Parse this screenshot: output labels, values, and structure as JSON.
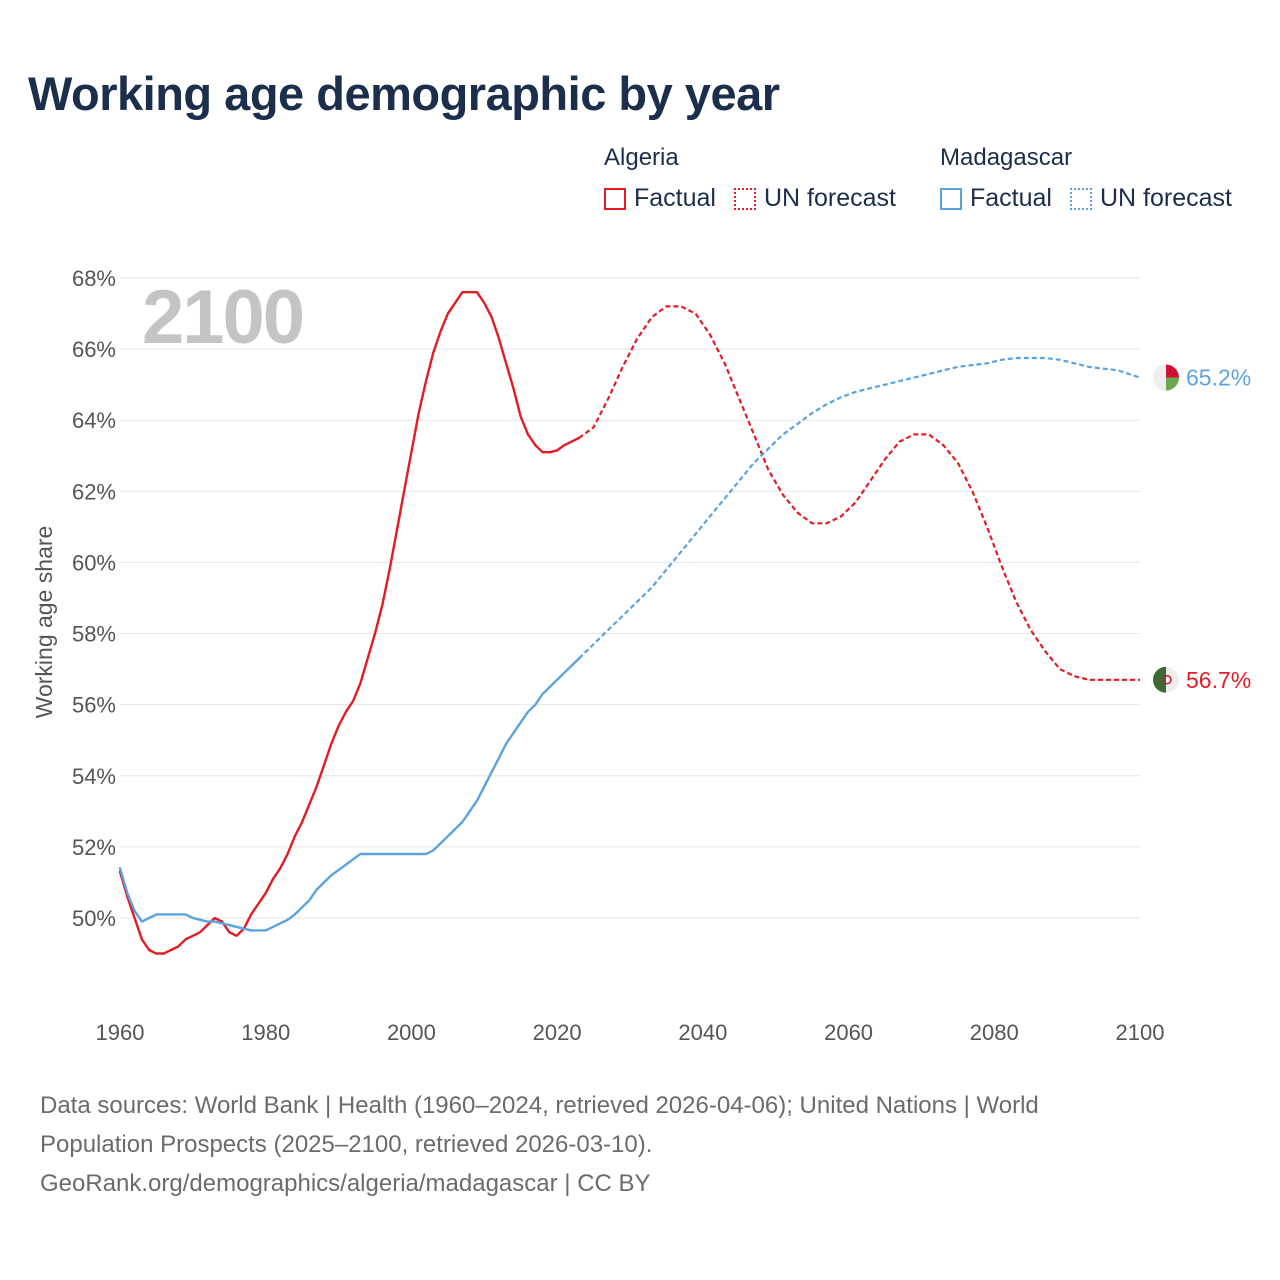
{
  "title": "Working age demographic by year",
  "legend": {
    "countries": [
      {
        "name": "Algeria",
        "color": "#e31b23",
        "factual_label": "Factual",
        "forecast_label": "UN forecast"
      },
      {
        "name": "Madagascar",
        "color": "#5ba3e0",
        "factual_label": "Factual",
        "forecast_label": "UN forecast"
      }
    ]
  },
  "year_watermark": "2100",
  "footer": {
    "line1": "Data sources: World Bank | Health (1960–2024, retrieved 2026-04-06); United Nations | World",
    "line2": "Population Prospects (2025–2100, retrieved 2026-03-10).",
    "line3": "GeoRank.org/demographics/algeria/madagascar | CC BY"
  },
  "chart_data": {
    "type": "line",
    "title": "Working age demographic by year",
    "xlabel": "",
    "ylabel": "Working age share",
    "xlim": [
      1960,
      2100
    ],
    "ylim": [
      48,
      68
    ],
    "x_ticks": [
      1960,
      1980,
      2000,
      2020,
      2040,
      2060,
      2080,
      2100
    ],
    "y_ticks": [
      50,
      52,
      54,
      56,
      58,
      60,
      62,
      64,
      66,
      68
    ],
    "y_tick_suffix": "%",
    "grid": true,
    "series": [
      {
        "name": "Algeria",
        "color": "#e31b23",
        "factual": [
          [
            1960,
            51.3
          ],
          [
            1961,
            50.6
          ],
          [
            1962,
            50.0
          ],
          [
            1963,
            49.4
          ],
          [
            1964,
            49.1
          ],
          [
            1965,
            49.0
          ],
          [
            1966,
            49.0
          ],
          [
            1967,
            49.1
          ],
          [
            1968,
            49.2
          ],
          [
            1969,
            49.4
          ],
          [
            1970,
            49.5
          ],
          [
            1971,
            49.6
          ],
          [
            1972,
            49.8
          ],
          [
            1973,
            50.0
          ],
          [
            1974,
            49.9
          ],
          [
            1975,
            49.6
          ],
          [
            1976,
            49.5
          ],
          [
            1977,
            49.7
          ],
          [
            1978,
            50.1
          ],
          [
            1979,
            50.4
          ],
          [
            1980,
            50.7
          ],
          [
            1981,
            51.1
          ],
          [
            1982,
            51.4
          ],
          [
            1983,
            51.8
          ],
          [
            1984,
            52.3
          ],
          [
            1985,
            52.7
          ],
          [
            1986,
            53.2
          ],
          [
            1987,
            53.7
          ],
          [
            1988,
            54.3
          ],
          [
            1989,
            54.9
          ],
          [
            1990,
            55.4
          ],
          [
            1991,
            55.8
          ],
          [
            1992,
            56.1
          ],
          [
            1993,
            56.6
          ],
          [
            1994,
            57.3
          ],
          [
            1995,
            58.0
          ],
          [
            1996,
            58.8
          ],
          [
            1997,
            59.8
          ],
          [
            1998,
            60.9
          ],
          [
            1999,
            62.0
          ],
          [
            2000,
            63.1
          ],
          [
            2001,
            64.2
          ],
          [
            2002,
            65.1
          ],
          [
            2003,
            65.9
          ],
          [
            2004,
            66.5
          ],
          [
            2005,
            67.0
          ],
          [
            2006,
            67.3
          ],
          [
            2007,
            67.6
          ],
          [
            2008,
            67.6
          ],
          [
            2009,
            67.6
          ],
          [
            2010,
            67.3
          ],
          [
            2011,
            66.9
          ],
          [
            2012,
            66.3
          ],
          [
            2013,
            65.6
          ],
          [
            2014,
            64.9
          ],
          [
            2015,
            64.1
          ],
          [
            2016,
            63.6
          ],
          [
            2017,
            63.3
          ],
          [
            2018,
            63.1
          ],
          [
            2019,
            63.1
          ],
          [
            2020,
            63.15
          ],
          [
            2021,
            63.3
          ],
          [
            2022,
            63.4
          ],
          [
            2023,
            63.5
          ]
        ],
        "forecast": [
          [
            2023,
            63.5
          ],
          [
            2025,
            63.8
          ],
          [
            2027,
            64.6
          ],
          [
            2029,
            65.5
          ],
          [
            2031,
            66.3
          ],
          [
            2033,
            66.9
          ],
          [
            2035,
            67.2
          ],
          [
            2037,
            67.2
          ],
          [
            2039,
            67.0
          ],
          [
            2041,
            66.4
          ],
          [
            2043,
            65.6
          ],
          [
            2045,
            64.6
          ],
          [
            2047,
            63.6
          ],
          [
            2049,
            62.6
          ],
          [
            2051,
            61.9
          ],
          [
            2053,
            61.4
          ],
          [
            2055,
            61.1
          ],
          [
            2057,
            61.1
          ],
          [
            2059,
            61.3
          ],
          [
            2061,
            61.7
          ],
          [
            2063,
            62.3
          ],
          [
            2065,
            62.9
          ],
          [
            2067,
            63.4
          ],
          [
            2069,
            63.6
          ],
          [
            2071,
            63.6
          ],
          [
            2073,
            63.3
          ],
          [
            2075,
            62.8
          ],
          [
            2077,
            62.0
          ],
          [
            2079,
            61.0
          ],
          [
            2081,
            59.9
          ],
          [
            2083,
            58.9
          ],
          [
            2085,
            58.1
          ],
          [
            2087,
            57.5
          ],
          [
            2089,
            57.0
          ],
          [
            2091,
            56.8
          ],
          [
            2093,
            56.7
          ],
          [
            2095,
            56.7
          ],
          [
            2100,
            56.7
          ]
        ],
        "end_label": "56.7%"
      },
      {
        "name": "Madagascar",
        "color": "#5ba3e0",
        "factual": [
          [
            1960,
            51.4
          ],
          [
            1961,
            50.7
          ],
          [
            1962,
            50.2
          ],
          [
            1963,
            49.9
          ],
          [
            1964,
            50.0
          ],
          [
            1965,
            50.1
          ],
          [
            1966,
            50.1
          ],
          [
            1967,
            50.1
          ],
          [
            1968,
            50.1
          ],
          [
            1969,
            50.1
          ],
          [
            1970,
            50.0
          ],
          [
            1971,
            49.95
          ],
          [
            1972,
            49.9
          ],
          [
            1973,
            49.9
          ],
          [
            1974,
            49.85
          ],
          [
            1975,
            49.8
          ],
          [
            1976,
            49.75
          ],
          [
            1977,
            49.7
          ],
          [
            1978,
            49.65
          ],
          [
            1979,
            49.65
          ],
          [
            1980,
            49.65
          ],
          [
            1981,
            49.75
          ],
          [
            1982,
            49.85
          ],
          [
            1983,
            49.95
          ],
          [
            1984,
            50.1
          ],
          [
            1985,
            50.3
          ],
          [
            1986,
            50.5
          ],
          [
            1987,
            50.8
          ],
          [
            1988,
            51.0
          ],
          [
            1989,
            51.2
          ],
          [
            1990,
            51.35
          ],
          [
            1991,
            51.5
          ],
          [
            1992,
            51.65
          ],
          [
            1993,
            51.8
          ],
          [
            1994,
            51.8
          ],
          [
            1995,
            51.8
          ],
          [
            1996,
            51.8
          ],
          [
            1997,
            51.8
          ],
          [
            1998,
            51.8
          ],
          [
            1999,
            51.8
          ],
          [
            2000,
            51.8
          ],
          [
            2001,
            51.8
          ],
          [
            2002,
            51.8
          ],
          [
            2003,
            51.9
          ],
          [
            2004,
            52.1
          ],
          [
            2005,
            52.3
          ],
          [
            2006,
            52.5
          ],
          [
            2007,
            52.7
          ],
          [
            2008,
            53.0
          ],
          [
            2009,
            53.3
          ],
          [
            2010,
            53.7
          ],
          [
            2011,
            54.1
          ],
          [
            2012,
            54.5
          ],
          [
            2013,
            54.9
          ],
          [
            2014,
            55.2
          ],
          [
            2015,
            55.5
          ],
          [
            2016,
            55.8
          ],
          [
            2017,
            56.0
          ],
          [
            2018,
            56.3
          ],
          [
            2019,
            56.5
          ],
          [
            2020,
            56.7
          ],
          [
            2021,
            56.9
          ],
          [
            2022,
            57.1
          ],
          [
            2023,
            57.3
          ]
        ],
        "forecast": [
          [
            2023,
            57.3
          ],
          [
            2025,
            57.7
          ],
          [
            2027,
            58.1
          ],
          [
            2029,
            58.5
          ],
          [
            2031,
            58.9
          ],
          [
            2033,
            59.3
          ],
          [
            2035,
            59.8
          ],
          [
            2037,
            60.3
          ],
          [
            2039,
            60.8
          ],
          [
            2041,
            61.3
          ],
          [
            2043,
            61.8
          ],
          [
            2045,
            62.3
          ],
          [
            2047,
            62.8
          ],
          [
            2049,
            63.2
          ],
          [
            2051,
            63.6
          ],
          [
            2053,
            63.9
          ],
          [
            2055,
            64.2
          ],
          [
            2057,
            64.45
          ],
          [
            2059,
            64.65
          ],
          [
            2061,
            64.8
          ],
          [
            2063,
            64.9
          ],
          [
            2065,
            65.0
          ],
          [
            2067,
            65.1
          ],
          [
            2069,
            65.2
          ],
          [
            2071,
            65.3
          ],
          [
            2073,
            65.4
          ],
          [
            2075,
            65.5
          ],
          [
            2077,
            65.55
          ],
          [
            2079,
            65.6
          ],
          [
            2081,
            65.7
          ],
          [
            2083,
            65.75
          ],
          [
            2085,
            65.75
          ],
          [
            2087,
            65.75
          ],
          [
            2089,
            65.7
          ],
          [
            2091,
            65.6
          ],
          [
            2093,
            65.5
          ],
          [
            2095,
            65.45
          ],
          [
            2097,
            65.4
          ],
          [
            2100,
            65.2
          ]
        ],
        "end_label": "65.2%"
      }
    ]
  }
}
